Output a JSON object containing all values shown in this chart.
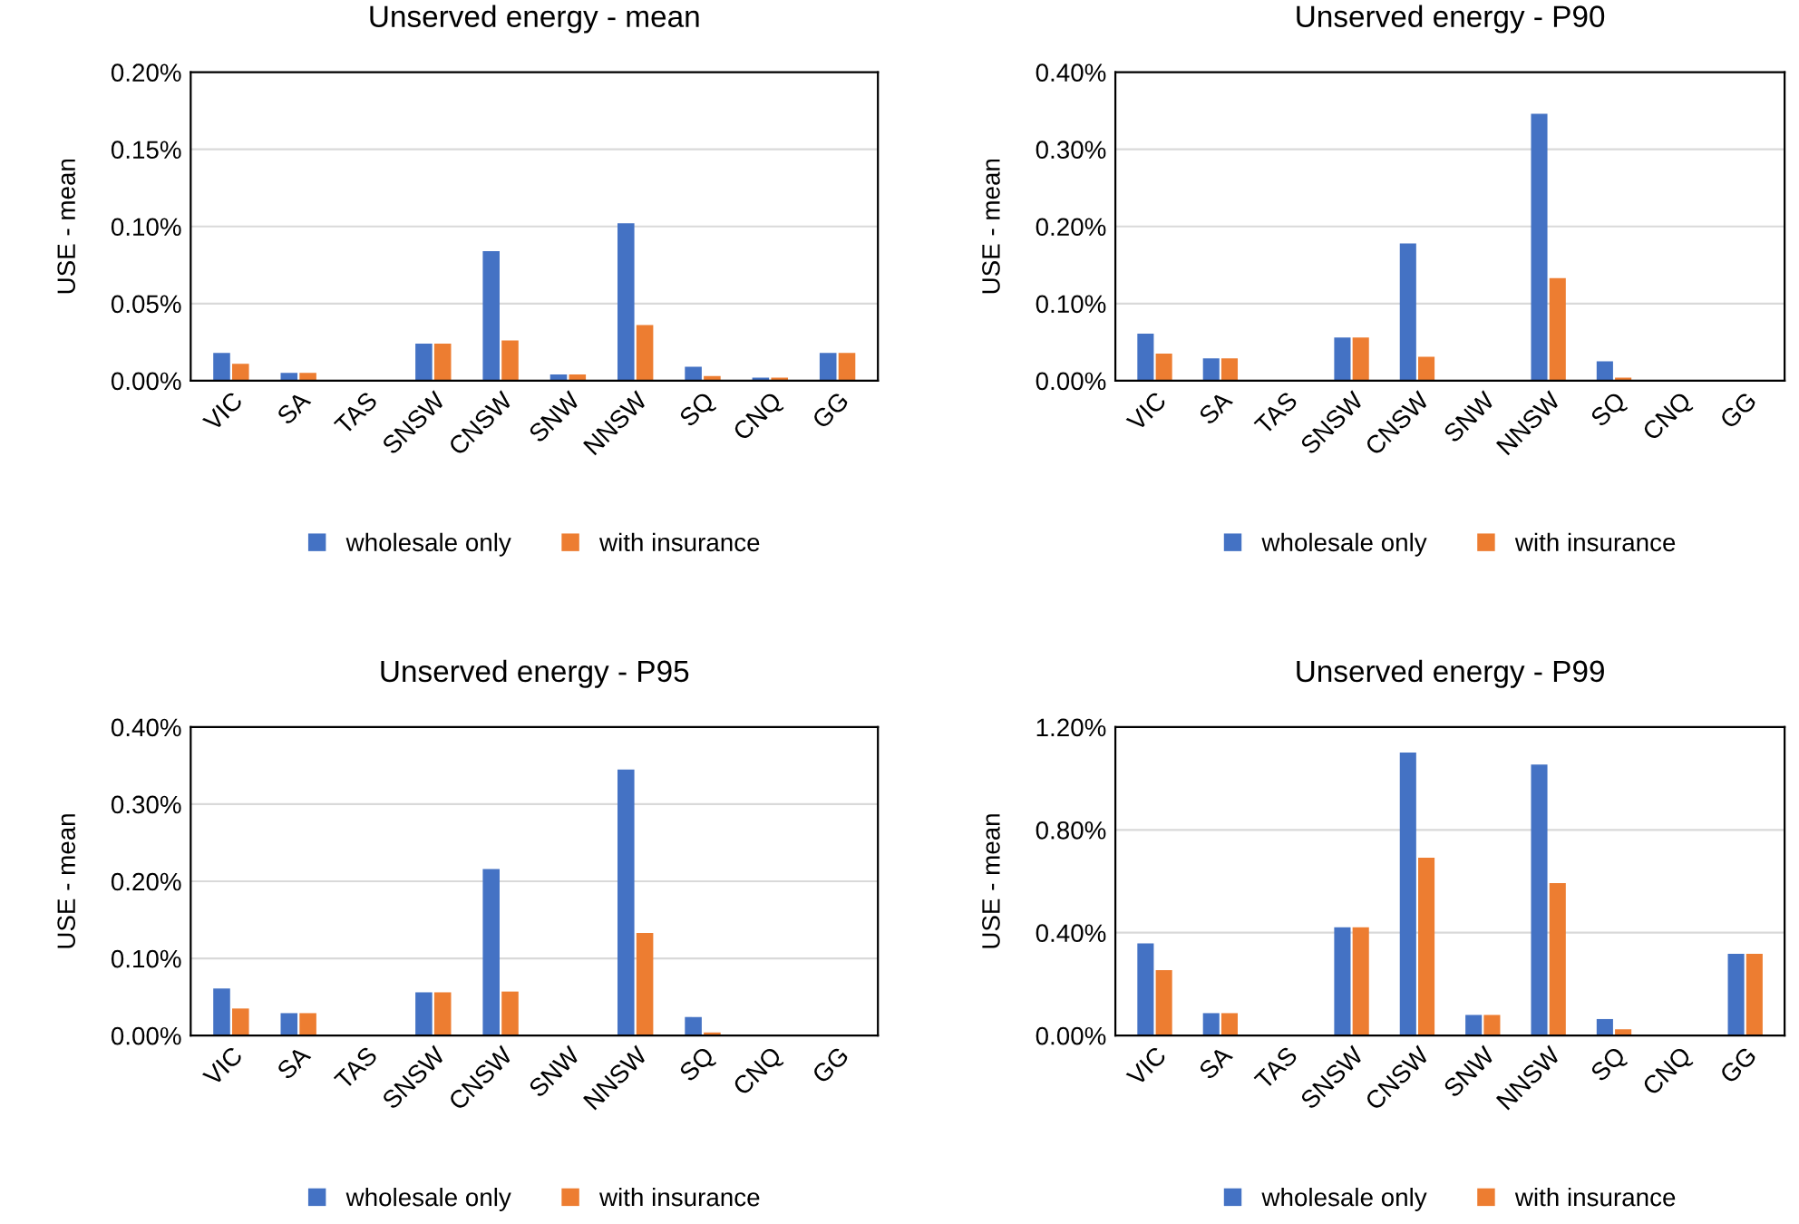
{
  "chart_data": [
    {
      "type": "bar",
      "title": "Unserved energy - mean",
      "ylabel": "USE - mean",
      "categories": [
        "VIC",
        "SA",
        "TAS",
        "SNSW",
        "CNSW",
        "SNW",
        "NNSW",
        "SQ",
        "CNQ",
        "GG"
      ],
      "series": [
        {
          "name": "wholesale only",
          "color": "#4472c4",
          "values": [
            0.018,
            0.005,
            0,
            0.024,
            0.084,
            0.004,
            0.102,
            0.009,
            0.002,
            0.018
          ]
        },
        {
          "name": "with insurance",
          "color": "#ed7d31",
          "values": [
            0.011,
            0.005,
            0,
            0.024,
            0.026,
            0.004,
            0.036,
            0.003,
            0.002,
            0.018
          ]
        }
      ],
      "ylim": [
        0,
        0.2
      ],
      "yticks": [
        {
          "value": 0,
          "label": "0.00%"
        },
        {
          "value": 0.05,
          "label": "0.05%"
        },
        {
          "value": 0.1,
          "label": "0.10%"
        },
        {
          "value": 0.15,
          "label": "0.15%"
        },
        {
          "value": 0.2,
          "label": "0.20%"
        }
      ],
      "grid": "y",
      "legend": "bottom"
    },
    {
      "type": "bar",
      "title": "Unserved energy - P90",
      "ylabel": "USE - mean",
      "categories": [
        "VIC",
        "SA",
        "TAS",
        "SNSW",
        "CNSW",
        "SNW",
        "NNSW",
        "SQ",
        "CNQ",
        "GG"
      ],
      "series": [
        {
          "name": "wholesale only",
          "color": "#4472c4",
          "values": [
            0.061,
            0.029,
            0,
            0.056,
            0.178,
            0,
            0.346,
            0.025,
            0,
            0
          ]
        },
        {
          "name": "with insurance",
          "color": "#ed7d31",
          "values": [
            0.035,
            0.029,
            0,
            0.056,
            0.031,
            0,
            0.133,
            0.004,
            0,
            0
          ]
        }
      ],
      "ylim": [
        0,
        0.4
      ],
      "yticks": [
        {
          "value": 0,
          "label": "0.00%"
        },
        {
          "value": 0.1,
          "label": "0.10%"
        },
        {
          "value": 0.2,
          "label": "0.20%"
        },
        {
          "value": 0.3,
          "label": "0.30%"
        },
        {
          "value": 0.4,
          "label": "0.40%"
        }
      ],
      "grid": "y",
      "legend": "bottom"
    },
    {
      "type": "bar",
      "title": "Unserved energy - P95",
      "ylabel": "USE - mean",
      "categories": [
        "VIC",
        "SA",
        "TAS",
        "SNSW",
        "CNSW",
        "SNW",
        "NNSW",
        "SQ",
        "CNQ",
        "GG"
      ],
      "series": [
        {
          "name": "wholesale only",
          "color": "#4472c4",
          "values": [
            0.061,
            0.029,
            0,
            0.056,
            0.216,
            0,
            0.345,
            0.024,
            0,
            0
          ]
        },
        {
          "name": "with insurance",
          "color": "#ed7d31",
          "values": [
            0.035,
            0.029,
            0,
            0.056,
            0.057,
            0,
            0.133,
            0.004,
            0,
            0
          ]
        }
      ],
      "ylim": [
        0,
        0.4
      ],
      "yticks": [
        {
          "value": 0,
          "label": "0.00%"
        },
        {
          "value": 0.1,
          "label": "0.10%"
        },
        {
          "value": 0.2,
          "label": "0.20%"
        },
        {
          "value": 0.3,
          "label": "0.30%"
        },
        {
          "value": 0.4,
          "label": "0.40%"
        }
      ],
      "grid": "y",
      "legend": "bottom"
    },
    {
      "type": "bar",
      "title": "Unserved energy - P99",
      "ylabel": "USE - mean",
      "categories": [
        "VIC",
        "SA",
        "TAS",
        "SNSW",
        "CNSW",
        "SNW",
        "NNSW",
        "SQ",
        "CNQ",
        "GG"
      ],
      "series": [
        {
          "name": "wholesale only",
          "color": "#4472c4",
          "values": [
            0.358,
            0.087,
            0,
            0.421,
            1.101,
            0.08,
            1.054,
            0.064,
            0,
            0.318
          ]
        },
        {
          "name": "with insurance",
          "color": "#ed7d31",
          "values": [
            0.254,
            0.087,
            0,
            0.421,
            0.692,
            0.08,
            0.593,
            0.024,
            0,
            0.318
          ]
        }
      ],
      "ylim": [
        0,
        1.2
      ],
      "yticks": [
        {
          "value": 0,
          "label": "0.00%"
        },
        {
          "value": 0.4,
          "label": "0.40%"
        },
        {
          "value": 0.8,
          "label": "0.80%"
        },
        {
          "value": 1.2,
          "label": "1.20%"
        }
      ],
      "grid": "y",
      "legend": "bottom"
    }
  ]
}
